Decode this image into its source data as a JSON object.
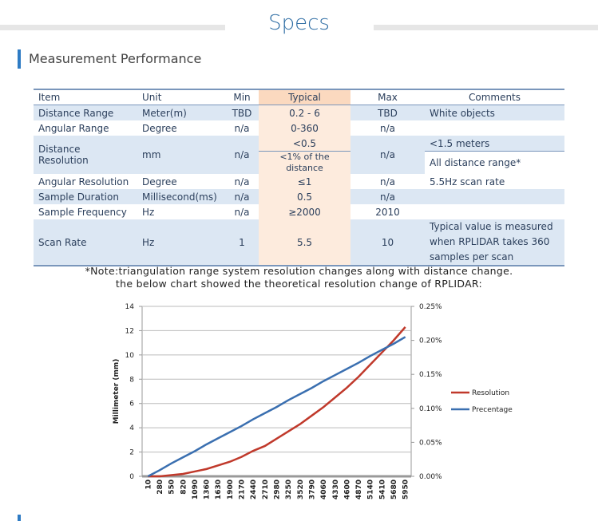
{
  "header": {
    "title": "Specs"
  },
  "section": {
    "title": "Measurement Performance"
  },
  "table": {
    "columns": [
      "Item",
      "Unit",
      "Min",
      "Typical",
      "Max",
      "Comments"
    ],
    "rows": [
      [
        "Distance Range",
        "Meter(m)",
        "TBD",
        "0.2 - 6",
        "TBD",
        "White objects"
      ],
      [
        "Angular Range",
        "Degree",
        "n/a",
        "0-360",
        "n/a"
      ],
      [
        "Distance Resolution",
        "mm",
        "n/a",
        [
          "<0.5",
          "<1% of the distance"
        ],
        "n/a",
        [
          "<1.5 meters",
          "All distance range*"
        ]
      ],
      [
        "Angular Resolution",
        "Degree",
        "n/a",
        "≤1",
        "n/a",
        "5.5Hz scan rate"
      ],
      [
        "Sample Duration",
        "Millisecond(ms)",
        "n/a",
        "0.5",
        "n/a"
      ],
      [
        "Sample Frequency",
        "Hz",
        "n/a",
        "≥2000",
        "2010"
      ],
      [
        "Scan Rate",
        "Hz",
        "1",
        "5.5",
        "10",
        "Typical value is measured when RPLIDAR takes 360 samples per scan"
      ]
    ]
  },
  "note": [
    "*Note:triangulation range system resolution changes along with distance change.",
    "the below chart showed the theoretical resolution change of RPLIDAR:"
  ],
  "chart_data": {
    "type": "line",
    "y_label": "Millimeter (mm)",
    "categories": [
      "10",
      "280",
      "550",
      "820",
      "1090",
      "1360",
      "1630",
      "1900",
      "2170",
      "2440",
      "2710",
      "2980",
      "3250",
      "3520",
      "3790",
      "4060",
      "4330",
      "4600",
      "4870",
      "5140",
      "5410",
      "5680",
      "5950"
    ],
    "ylim": [
      0,
      14
    ],
    "yticks": [
      0,
      2,
      4,
      6,
      8,
      10,
      12,
      14
    ],
    "y2lim": [
      0,
      0.25
    ],
    "y2ticks": [
      {
        "value": 0,
        "label": "0.00%"
      },
      {
        "value": 0.05,
        "label": "0.05%"
      },
      {
        "value": 0.1,
        "label": "0.10%"
      },
      {
        "value": 0.15,
        "label": "0.15%"
      },
      {
        "value": 0.2,
        "label": "0.20%"
      },
      {
        "value": 0.25,
        "label": "0.25%"
      }
    ],
    "grid": true,
    "legend": "right",
    "series": [
      {
        "name": "Resolution",
        "color": "#c0392b",
        "values": [
          0,
          0,
          0.1,
          0.2,
          0.4,
          0.6,
          0.9,
          1.2,
          1.6,
          2.1,
          2.5,
          3.1,
          3.7,
          4.3,
          5.0,
          5.7,
          6.5,
          7.3,
          8.2,
          9.2,
          10.2,
          11.2,
          12.3
        ]
      },
      {
        "name": "Precentage",
        "color": "#3a6fb0",
        "axis": "y2",
        "values": [
          0,
          0.009,
          0.019,
          0.028,
          0.037,
          0.047,
          0.056,
          0.065,
          0.074,
          0.084,
          0.093,
          0.102,
          0.112,
          0.121,
          0.13,
          0.14,
          0.149,
          0.158,
          0.167,
          0.177,
          0.186,
          0.195,
          0.205
        ]
      }
    ]
  }
}
